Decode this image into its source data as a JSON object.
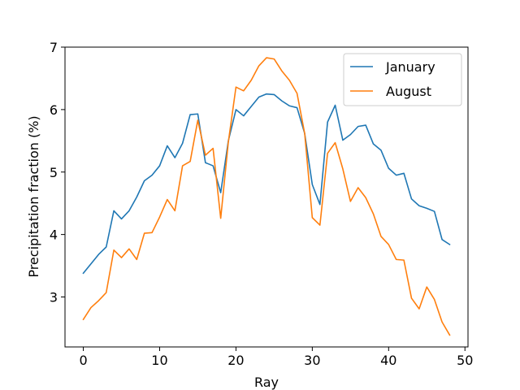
{
  "chart_data": {
    "type": "line",
    "xlabel": "Ray",
    "ylabel": "Precipitation fraction (%)",
    "xlim": [
      -2.4,
      50.4
    ],
    "ylim": [
      2.2,
      7.0
    ],
    "xticks": [
      0,
      10,
      20,
      30,
      40,
      50
    ],
    "yticks": [
      3,
      4,
      5,
      6,
      7
    ],
    "legend_position": "top-right",
    "grid": false,
    "x": [
      0,
      1,
      2,
      3,
      4,
      5,
      6,
      7,
      8,
      9,
      10,
      11,
      12,
      13,
      14,
      15,
      16,
      17,
      18,
      19,
      20,
      21,
      22,
      23,
      24,
      25,
      26,
      27,
      28,
      29,
      30,
      31,
      32,
      33,
      34,
      35,
      36,
      37,
      38,
      39,
      40,
      41,
      42,
      43,
      44,
      45,
      46,
      47,
      48
    ],
    "series": [
      {
        "name": "January",
        "color": "#1f77b4",
        "values": [
          3.38,
          3.53,
          3.68,
          3.8,
          4.38,
          4.25,
          4.38,
          4.6,
          4.86,
          4.95,
          5.1,
          5.42,
          5.23,
          5.46,
          5.92,
          5.93,
          5.15,
          5.1,
          4.67,
          5.5,
          6.0,
          5.9,
          6.05,
          6.2,
          6.25,
          6.24,
          6.14,
          6.06,
          6.03,
          5.62,
          4.8,
          4.48,
          5.8,
          6.07,
          5.51,
          5.6,
          5.73,
          5.75,
          5.45,
          5.35,
          5.06,
          4.95,
          4.98,
          4.57,
          4.46,
          4.42,
          4.37,
          3.92,
          3.84
        ]
      },
      {
        "name": "August",
        "color": "#ff7f0e",
        "values": [
          2.64,
          2.83,
          2.94,
          3.07,
          3.75,
          3.63,
          3.77,
          3.6,
          4.02,
          4.03,
          4.28,
          4.56,
          4.38,
          5.1,
          5.17,
          5.83,
          5.27,
          5.38,
          4.26,
          5.48,
          6.36,
          6.3,
          6.47,
          6.7,
          6.83,
          6.81,
          6.62,
          6.47,
          6.26,
          5.62,
          4.27,
          4.15,
          5.3,
          5.47,
          5.05,
          4.53,
          4.75,
          4.59,
          4.33,
          3.97,
          3.84,
          3.6,
          3.59,
          2.98,
          2.81,
          3.16,
          2.96,
          2.6,
          2.39
        ]
      }
    ]
  }
}
